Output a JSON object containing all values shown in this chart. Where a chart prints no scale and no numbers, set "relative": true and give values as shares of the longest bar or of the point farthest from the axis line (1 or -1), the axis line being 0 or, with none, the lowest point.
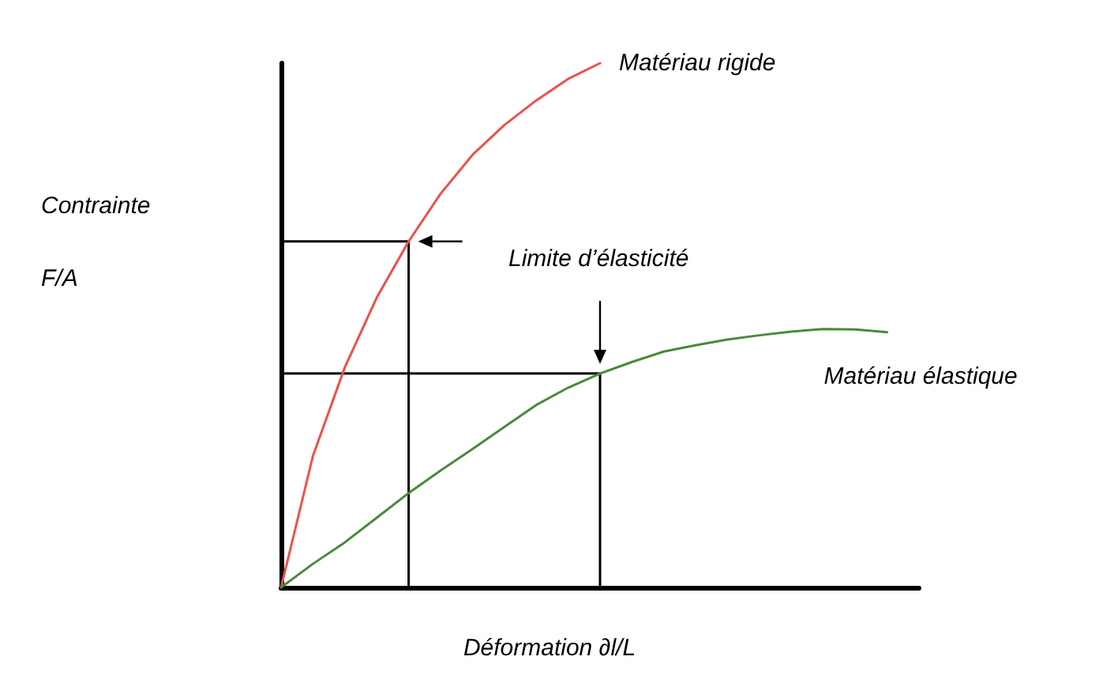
{
  "chart_data": {
    "type": "line",
    "relative": true,
    "grid": false,
    "legend": false,
    "marker": "none",
    "line_style": "solid",
    "xlabel": "Déformation ∂l/L",
    "ylabel": "Contrainte\nF/A",
    "annotations": [
      "Limite d’élasticité"
    ],
    "categories": [
      null,
      null,
      null,
      null,
      null,
      null,
      null,
      null,
      null,
      null,
      null,
      null,
      null,
      null,
      null,
      null,
      null,
      null,
      null,
      null,
      null
    ],
    "series": [
      {
        "name": "Matériau rigide",
        "color": "#f0504a",
        "values": [
          0,
          0.251,
          0.42,
          0.553,
          0.66,
          0.751,
          0.825,
          0.882,
          0.929,
          0.97,
          1,
          null,
          null,
          null,
          null,
          null,
          null,
          null,
          null,
          null,
          null
        ]
      },
      {
        "name": "Matériau élastique",
        "color": "#4a8a3a",
        "values": [
          0,
          0.045,
          0.086,
          0.133,
          0.18,
          0.223,
          0.264,
          0.306,
          0.348,
          0.381,
          0.408,
          0.43,
          0.45,
          0.462,
          0.473,
          0.481,
          0.488,
          0.493,
          0.492,
          0.487,
          null
        ]
      }
    ],
    "ref_lines": [
      {
        "axis": "y",
        "value": 0.66,
        "color": "#000000",
        "line_style": "solid"
      },
      {
        "axis": "y",
        "value": 0.408,
        "color": "#000000",
        "line_style": "solid"
      }
    ]
  }
}
